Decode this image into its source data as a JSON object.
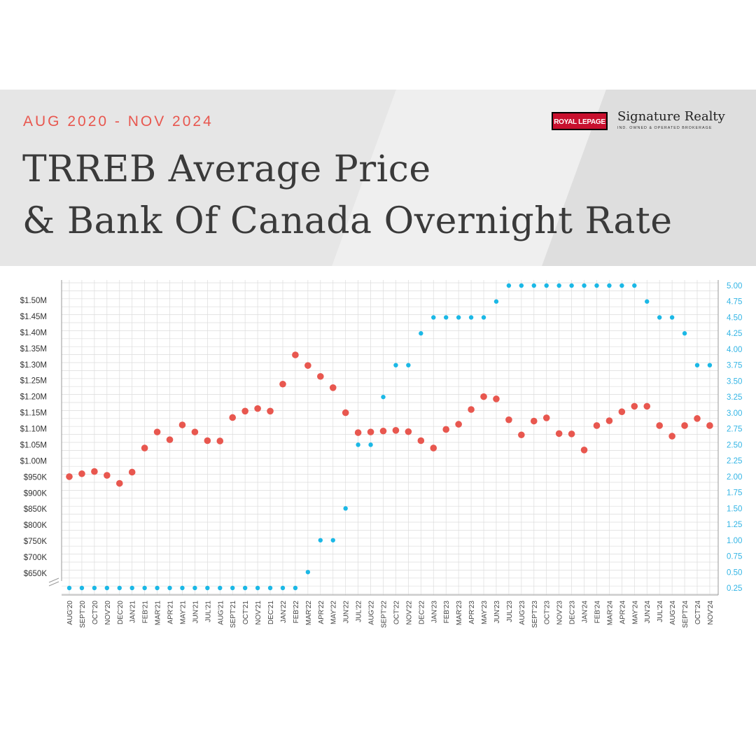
{
  "header": {
    "subtitle": "AUG 2020 - NOV 2024",
    "title_line1": "TRREB Average Price",
    "title_line2": "& Bank Of Canada Overnight Rate"
  },
  "logo": {
    "brand": "ROYAL LEPAGE",
    "name": "Signature Realty",
    "tagline": "IND. OWNED & OPERATED BROKERAGE"
  },
  "colors": {
    "price": "#e8574f",
    "rate": "#1bb8e6",
    "rate_axis_text": "#33b5e5",
    "grid": "#dcdcdc"
  },
  "chart_data": {
    "type": "scatter",
    "categories": [
      "AUG'20",
      "SEPT'20",
      "OCT'20",
      "NOV'20",
      "DEC'20",
      "JAN'21",
      "FEB'21",
      "MAR'21",
      "APR'21",
      "MAY'21",
      "JUN'21",
      "JUL'21",
      "AUG'21",
      "SEPT'21",
      "OCT'21",
      "NOV'21",
      "DEC'21",
      "JAN'22",
      "FEB'22",
      "MAR'22",
      "APR'22",
      "MAY'22",
      "JUN'22",
      "JUL'22",
      "AUG'22",
      "SEPT'22",
      "OCT'22",
      "NOV'22",
      "DEC'22",
      "JAN'23",
      "FEB'23",
      "MAR'23",
      "APR'23",
      "MAY'23",
      "JUN'23",
      "JUL'23",
      "AUG'23",
      "SEPT'23",
      "OCT'23",
      "NOV'23",
      "DEC'23",
      "JAN'24",
      "FEB'24",
      "MAR'24",
      "APR'24",
      "MAY'24",
      "JUN'24",
      "JUL'24",
      "AUG'24",
      "SEPT'24",
      "OCT'24",
      "NOV'24"
    ],
    "left_axis": {
      "ticks": [
        "$650K",
        "$700K",
        "$750K",
        "$800K",
        "$850K",
        "$900K",
        "$950K",
        "$1.00M",
        "$1.05M",
        "$1.10M",
        "$1.15M",
        "$1.20M",
        "$1.25M",
        "$1.30M",
        "$1.35M",
        "$1.40M",
        "$1.45M",
        "$1.50M"
      ],
      "min": 650000,
      "max": 1500000
    },
    "right_axis": {
      "ticks": [
        "0.25",
        "0.50",
        "0.75",
        "1.00",
        "1.25",
        "1.50",
        "1.75",
        "2.00",
        "2.25",
        "2.50",
        "2.75",
        "3.00",
        "3.25",
        "3.50",
        "3.75",
        "4.00",
        "4.25",
        "4.50",
        "4.75",
        "5.00"
      ],
      "min": 0.25,
      "max": 5.0
    },
    "series": [
      {
        "axis": "left",
        "values": [
          951000,
          960000,
          967000,
          955000,
          930000,
          965000,
          1040000,
          1090000,
          1066000,
          1112000,
          1090000,
          1063000,
          1062000,
          1135000,
          1155000,
          1163000,
          1155000,
          1239000,
          1330000,
          1297000,
          1263000,
          1228000,
          1150000,
          1088000,
          1090000,
          1093000,
          1095000,
          1091000,
          1063000,
          1040000,
          1098000,
          1114000,
          1160000,
          1200000,
          1193000,
          1128000,
          1081000,
          1124000,
          1134000,
          1085000,
          1084000,
          1034000,
          1110000,
          1125000,
          1153000,
          1170000,
          1170000,
          1110000,
          1077000,
          1110000,
          1132000,
          1110000
        ]
      },
      {
        "axis": "right",
        "values": [
          0.25,
          0.25,
          0.25,
          0.25,
          0.25,
          0.25,
          0.25,
          0.25,
          0.25,
          0.25,
          0.25,
          0.25,
          0.25,
          0.25,
          0.25,
          0.25,
          0.25,
          0.25,
          0.25,
          0.5,
          1.0,
          1.0,
          1.5,
          2.5,
          2.5,
          3.25,
          3.75,
          3.75,
          4.25,
          4.5,
          4.5,
          4.5,
          4.5,
          4.5,
          4.75,
          5.0,
          5.0,
          5.0,
          5.0,
          5.0,
          5.0,
          5.0,
          5.0,
          5.0,
          5.0,
          5.0,
          4.75,
          4.5,
          4.5,
          4.25,
          3.75,
          3.75
        ]
      }
    ],
    "grid": true
  }
}
